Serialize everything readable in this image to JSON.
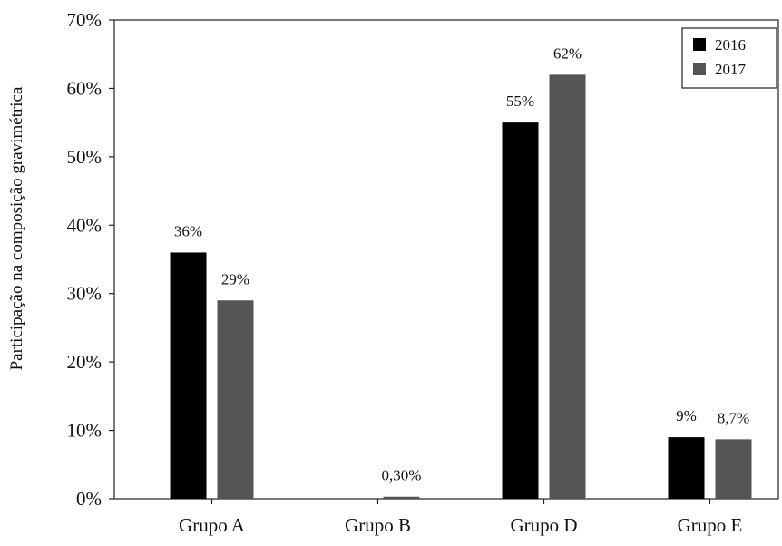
{
  "chart_data": {
    "type": "bar",
    "title": "",
    "xlabel": "",
    "ylabel": "Participação na composição gravimétrica",
    "categories": [
      "Grupo A",
      "Grupo B",
      "Grupo D",
      "Grupo E"
    ],
    "series": [
      {
        "name": "2016",
        "color": "#000000",
        "values": [
          36,
          null,
          55,
          9
        ],
        "labels": [
          "36%",
          "",
          "55%",
          "9%"
        ]
      },
      {
        "name": "2017",
        "color": "#555555",
        "values": [
          29,
          0.3,
          62,
          8.7
        ],
        "labels": [
          "29%",
          "0,30%",
          "62%",
          "8,7%"
        ]
      }
    ],
    "yticks": [
      0,
      10,
      20,
      30,
      40,
      50,
      60,
      70
    ],
    "ytick_labels": [
      "0%",
      "10%",
      "20%",
      "30%",
      "40%",
      "50%",
      "60%",
      "70%"
    ],
    "ylim": [
      0,
      70
    ],
    "grid": false,
    "legend_position": "top-right"
  }
}
